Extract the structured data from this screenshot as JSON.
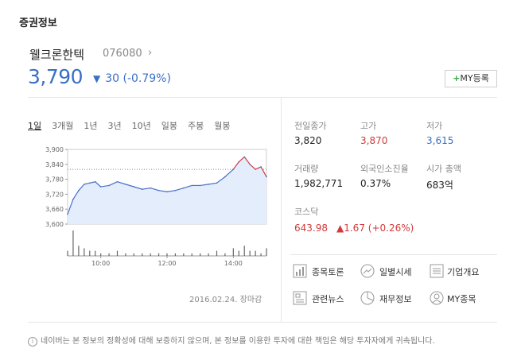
{
  "section_title": "증권정보",
  "stock": {
    "name": "웰크론한텍",
    "code": "076080",
    "price": "3,790",
    "change": "30 (-0.79%)",
    "change_direction": "down",
    "my_button": "MY등록"
  },
  "period_tabs": [
    "1일",
    "3개월",
    "1년",
    "3년",
    "10년",
    "일봉",
    "주봉",
    "월봉"
  ],
  "active_tab": "1일",
  "chart_data": {
    "type": "line",
    "y_ticks": [
      "3,900",
      "3,840",
      "3,780",
      "3,720",
      "3,660",
      "3,600"
    ],
    "x_ticks": [
      "10:00",
      "12:00",
      "14:00"
    ],
    "ylim": [
      3600,
      3900
    ],
    "reference_price": 3820,
    "series": [
      {
        "x": [
          "09:00",
          "09:10",
          "09:20",
          "09:30",
          "09:40",
          "09:50",
          "10:00",
          "10:15",
          "10:30",
          "10:45",
          "11:00",
          "11:15",
          "11:30",
          "11:45",
          "12:00",
          "12:15",
          "12:30",
          "12:45",
          "13:00",
          "13:15",
          "13:30",
          "13:45",
          "14:00",
          "14:10",
          "14:20",
          "14:30",
          "14:40",
          "14:50",
          "15:00"
        ],
        "values": [
          3640,
          3700,
          3735,
          3760,
          3765,
          3770,
          3750,
          3755,
          3770,
          3760,
          3750,
          3740,
          3745,
          3735,
          3730,
          3735,
          3745,
          3755,
          3755,
          3760,
          3765,
          3790,
          3820,
          3850,
          3870,
          3840,
          3820,
          3830,
          3790
        ]
      }
    ],
    "volumes": [
      2,
      10,
      4,
      3,
      2,
      2,
      1,
      1,
      2,
      1,
      1,
      1,
      1,
      1,
      1,
      1,
      1,
      1,
      1,
      1,
      2,
      1,
      3,
      2,
      4,
      2,
      2,
      1,
      3
    ]
  },
  "stats": {
    "prev_close_label": "전일종가",
    "prev_close": "3,820",
    "high_label": "고가",
    "high": "3,870",
    "low_label": "저가",
    "low": "3,615",
    "volume_label": "거래량",
    "volume": "1,982,771",
    "foreign_label": "외국인소진율",
    "foreign": "0.37%",
    "mcap_label": "시가 총액",
    "mcap": "683억",
    "market_label": "코스닥",
    "market_value": "643.98",
    "market_change": "▲1.67 (+0.26%)"
  },
  "links": [
    "종목토론",
    "일별시세",
    "기업개요",
    "관련뉴스",
    "재무정보",
    "MY종목"
  ],
  "date_status": "2016.02.24. 장마감",
  "disclaimer": "네이버는 본 정보의 정확성에 대해 보증하지 않으며, 본 정보를 이용한 투자에 대한 책임은 해당 투자자에게 귀속됩니다.",
  "colors": {
    "up": "#d23a3a",
    "down": "#3a6fc7",
    "line": "#4a6fc9"
  }
}
